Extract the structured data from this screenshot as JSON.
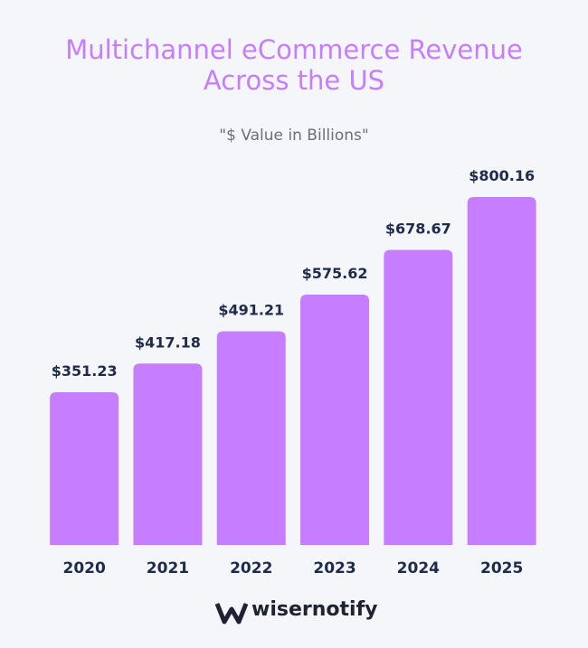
{
  "chart_data": {
    "type": "bar",
    "title": "Multichannel eCommerce Revenue Across the US",
    "subtitle": "\"$ Value in Billions\"",
    "categories": [
      "2020",
      "2021",
      "2022",
      "2023",
      "2024",
      "2025"
    ],
    "values": [
      351.23,
      417.18,
      491.21,
      575.62,
      678.67,
      800.16
    ],
    "value_labels": [
      "$351.23",
      "$417.18",
      "$491.21",
      "$575.62",
      "$678.67",
      "$800.16"
    ],
    "color": "#c77dff"
  },
  "brand": "wisernotify"
}
